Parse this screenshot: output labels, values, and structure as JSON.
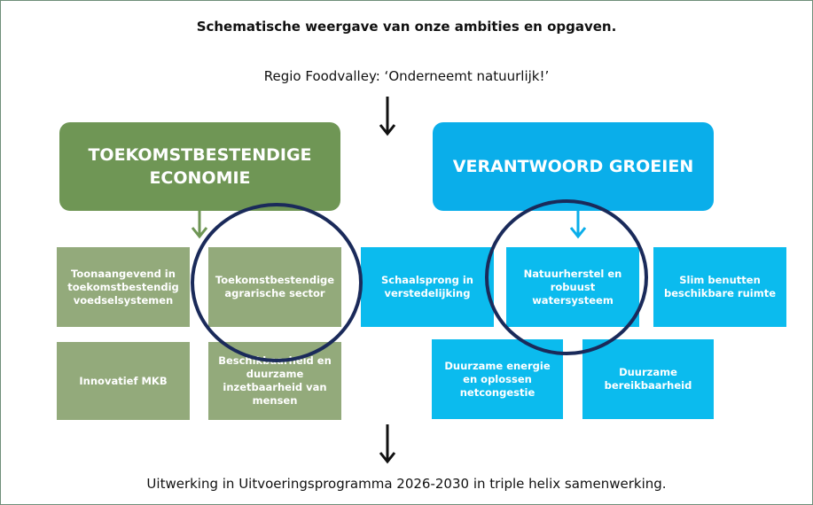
{
  "title": "Schematische weergave van onze ambities en opgaven.",
  "subtitle": "Regio Foodvalley: ‘Onderneemt natuurlijk!’",
  "left": {
    "heading": "TOEKOMSTBESTENDIGE ECONOMIE",
    "boxes": [
      "Toonaangevend in toekomstbestendig voedselsystemen",
      "Toekomstbestendige agrarische sector",
      "Innovatief MKB",
      "Beschikbaarheid en duurzame inzetbaarheid van mensen"
    ]
  },
  "right": {
    "heading": "VERANTWOORD GROEIEN",
    "boxes": [
      "Schaalsprong in verstedelijking",
      "Natuurherstel en robuust watersysteem",
      "Slim benutten beschikbare ruimte",
      "Duurzame energie en oplossen netcongestie",
      "Duurzame bereikbaarheid"
    ]
  },
  "footer": "Uitwerking in Uitvoeringsprogramma 2026-2030 in triple helix samenwerking."
}
